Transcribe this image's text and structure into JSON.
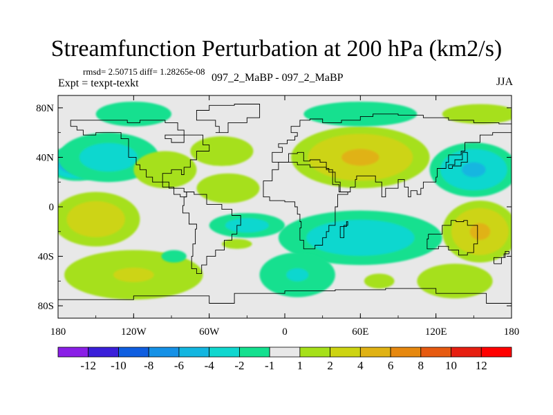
{
  "chart_data": {
    "type": "heatmap",
    "title": "Streamfunction Perturbation at 200 hPa (km2/s)",
    "stats_line": "rmsd= 2.50715 diff= 1.28265e-08",
    "left_label": "Expt = texpt-texkt",
    "center_label": "097_2_MaBP - 097_2_MaBP",
    "right_label": "JJA",
    "x_ticks": [
      {
        "value": -180,
        "label": "180"
      },
      {
        "value": -120,
        "label": "120W"
      },
      {
        "value": -60,
        "label": "60W"
      },
      {
        "value": 0,
        "label": "0"
      },
      {
        "value": 60,
        "label": "60E"
      },
      {
        "value": 120,
        "label": "120E"
      },
      {
        "value": 180,
        "label": "180"
      }
    ],
    "y_ticks": [
      {
        "value": 80,
        "label": "80N"
      },
      {
        "value": 40,
        "label": "40N"
      },
      {
        "value": 0,
        "label": "0"
      },
      {
        "value": -40,
        "label": "40S"
      },
      {
        "value": -80,
        "label": "80S"
      }
    ],
    "xlim": [
      -180,
      180
    ],
    "ylim": [
      -90,
      90
    ],
    "colorbar": {
      "levels": [
        "-12",
        "-10",
        "-8",
        "-6",
        "-4",
        "-2",
        "-1",
        "1",
        "2",
        "4",
        "6",
        "8",
        "10",
        "12"
      ],
      "colors": [
        "#8a1fe6",
        "#3a1fd9",
        "#0f5ee0",
        "#1591e6",
        "#13b6e0",
        "#10d7cf",
        "#14e08f",
        "#e8e8e8",
        "#a6e01a",
        "#cdd412",
        "#e0b214",
        "#e6880f",
        "#e65a10",
        "#e61f10",
        "#ff0000"
      ]
    },
    "blobs": [
      {
        "lon": -165,
        "lat": 35,
        "rx": 25,
        "ry": 14,
        "value": -7.5
      },
      {
        "lon": -140,
        "lat": 40,
        "rx": 40,
        "ry": 20,
        "value": -3
      },
      {
        "lon": -120,
        "lat": 75,
        "rx": 30,
        "ry": 10,
        "value": -1.8
      },
      {
        "lon": -150,
        "lat": -10,
        "rx": 35,
        "ry": 22,
        "value": 3.5
      },
      {
        "lon": -120,
        "lat": -55,
        "rx": 55,
        "ry": 20,
        "value": 2.2
      },
      {
        "lon": -95,
        "lat": 30,
        "rx": 25,
        "ry": 15,
        "value": 1.6
      },
      {
        "lon": -45,
        "lat": 15,
        "rx": 25,
        "ry": 12,
        "value": 1.8
      },
      {
        "lon": -50,
        "lat": 45,
        "rx": 25,
        "ry": 12,
        "value": 1.3
      },
      {
        "lon": -30,
        "lat": -15,
        "rx": 30,
        "ry": 10,
        "value": -3
      },
      {
        "lon": -88,
        "lat": -40,
        "rx": 10,
        "ry": 5,
        "value": -1.8
      },
      {
        "lon": -38,
        "lat": -30,
        "rx": 12,
        "ry": 4,
        "value": 1.6
      },
      {
        "lon": 60,
        "lat": 40,
        "rx": 55,
        "ry": 25,
        "value": 4.5
      },
      {
        "lon": 60,
        "lat": 75,
        "rx": 45,
        "ry": 10,
        "value": -1.5
      },
      {
        "lon": 60,
        "lat": -25,
        "rx": 65,
        "ry": 22,
        "value": -3.5
      },
      {
        "lon": 10,
        "lat": -55,
        "rx": 30,
        "ry": 18,
        "value": -2.2
      },
      {
        "lon": 150,
        "lat": 30,
        "rx": 35,
        "ry": 22,
        "value": -4.5
      },
      {
        "lon": 155,
        "lat": -20,
        "rx": 30,
        "ry": 25,
        "value": 4.5
      },
      {
        "lon": 155,
        "lat": 75,
        "rx": 30,
        "ry": 8,
        "value": 1.2
      },
      {
        "lon": 135,
        "lat": -60,
        "rx": 30,
        "ry": 14,
        "value": 1.5
      },
      {
        "lon": 75,
        "lat": -60,
        "rx": 12,
        "ry": 6,
        "value": 1.5
      }
    ]
  }
}
